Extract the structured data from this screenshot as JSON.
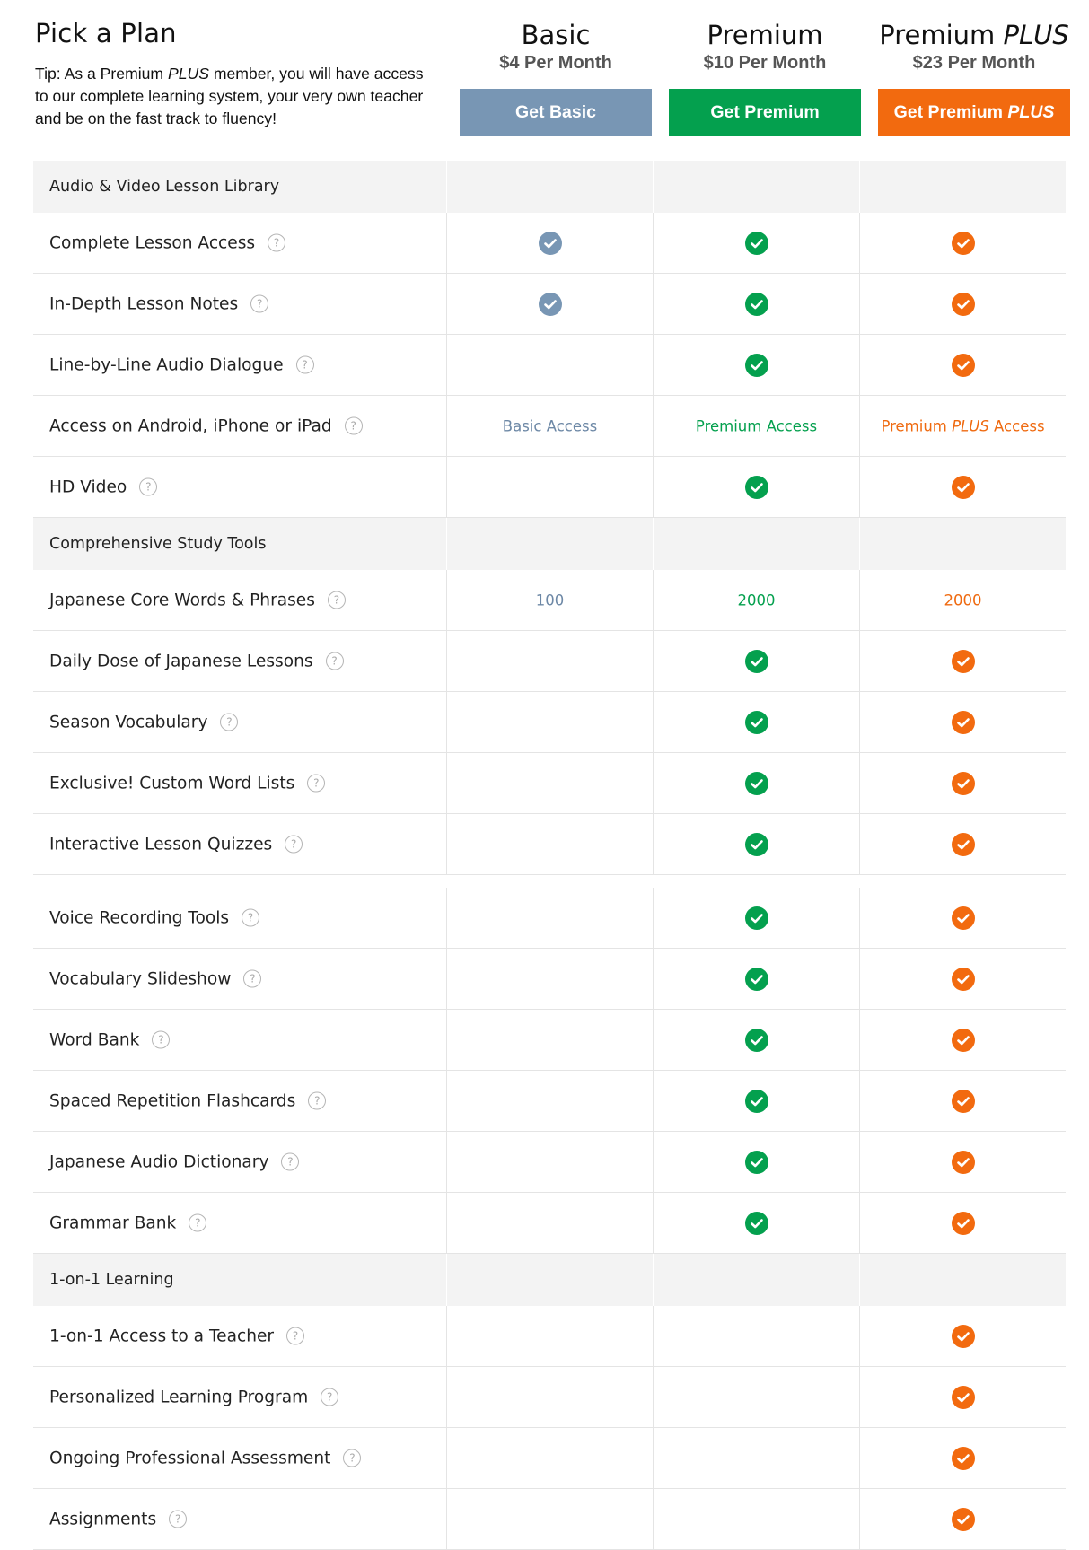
{
  "header": {
    "title": "Pick a Plan",
    "tip_prefix": "Tip: As a Premium ",
    "tip_em": "PLUS",
    "tip_suffix": " member, you will have access to our complete learning system, your very own teacher and be on the fast track to fluency!"
  },
  "plans": [
    {
      "name": "Basic",
      "name_em": "",
      "price": "$4 Per Month",
      "button": "Get Basic",
      "button_em": "",
      "color": "#7896b4"
    },
    {
      "name": "Premium",
      "name_em": "",
      "price": "$10 Per Month",
      "button": "Get Premium",
      "button_em": "",
      "color": "#04a04e"
    },
    {
      "name": "Premium ",
      "name_em": "PLUS",
      "price": "$23 Per Month",
      "button": "Get Premium ",
      "button_em": "PLUS",
      "color": "#f26a0f"
    }
  ],
  "help_glyph": "?",
  "sections": [
    {
      "title": "Audio & Video Lesson Library",
      "features": [
        {
          "label": "Complete Lesson Access",
          "basic": "check",
          "premium": "check",
          "plus": "check"
        },
        {
          "label": "In-Depth Lesson Notes",
          "basic": "check",
          "premium": "check",
          "plus": "check"
        },
        {
          "label": "Line-by-Line Audio Dialogue",
          "basic": "",
          "premium": "check",
          "plus": "check"
        },
        {
          "label": "Access on Android, iPhone or iPad",
          "basic": "Basic Access",
          "premium": "Premium Access",
          "plus": "Premium PLUS Access"
        },
        {
          "label": "HD Video",
          "basic": "",
          "premium": "check",
          "plus": "check"
        }
      ]
    },
    {
      "title": "Comprehensive Study Tools",
      "features": [
        {
          "label": "Japanese Core Words & Phrases",
          "basic": "100",
          "premium": "2000",
          "plus": "2000"
        },
        {
          "label": "Daily Dose of Japanese Lessons",
          "basic": "",
          "premium": "check",
          "plus": "check"
        },
        {
          "label": "Season Vocabulary",
          "basic": "",
          "premium": "check",
          "plus": "check"
        },
        {
          "label": "Exclusive! Custom Word Lists",
          "basic": "",
          "premium": "check",
          "plus": "check"
        },
        {
          "label": "Interactive Lesson Quizzes",
          "basic": "",
          "premium": "check",
          "plus": "check"
        },
        {
          "label": "Voice Recording Tools",
          "basic": "",
          "premium": "check",
          "plus": "check"
        },
        {
          "label": "Vocabulary Slideshow",
          "basic": "",
          "premium": "check",
          "plus": "check"
        },
        {
          "label": "Word Bank",
          "basic": "",
          "premium": "check",
          "plus": "check"
        },
        {
          "label": "Spaced Repetition Flashcards",
          "basic": "",
          "premium": "check",
          "plus": "check"
        },
        {
          "label": "Japanese Audio Dictionary",
          "basic": "",
          "premium": "check",
          "plus": "check"
        },
        {
          "label": "Grammar Bank",
          "basic": "",
          "premium": "check",
          "plus": "check"
        }
      ]
    },
    {
      "title": "1-on-1 Learning",
      "features": [
        {
          "label": "1-on-1 Access to a Teacher",
          "basic": "",
          "premium": "",
          "plus": "check"
        },
        {
          "label": "Personalized Learning Program",
          "basic": "",
          "premium": "",
          "plus": "check"
        },
        {
          "label": "Ongoing Professional Assessment",
          "basic": "",
          "premium": "",
          "plus": "check"
        },
        {
          "label": "Assignments",
          "basic": "",
          "premium": "",
          "plus": "check"
        }
      ]
    }
  ]
}
